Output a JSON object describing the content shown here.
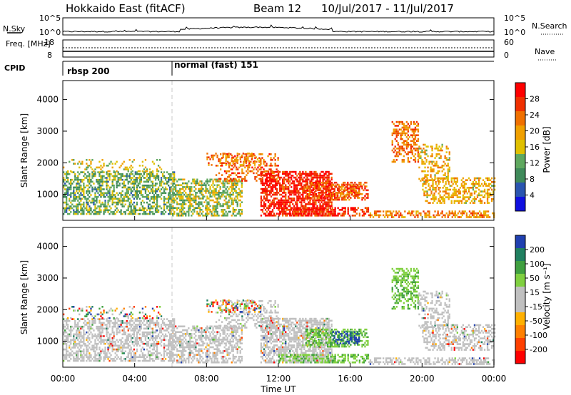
{
  "header": {
    "station": "Hokkaido East (fitACF)",
    "beam": "Beam 12",
    "date_range": "10/Jul/2017 - 11/Jul/2017"
  },
  "colors": {
    "scale_power": [
      "#1010e0",
      "#2a55b0",
      "#3f8a5a",
      "#5fa85f",
      "#e0c000",
      "#f0a000",
      "#f07000",
      "#f03000",
      "#ff0000"
    ],
    "scale_velocity": [
      "#ff0000",
      "#ff4000",
      "#ff8000",
      "#ffb000",
      "#c0c0c0",
      "#c0c0c0",
      "#80d040",
      "#40a040",
      "#208060",
      "#2040b0"
    ]
  },
  "chart_data": [
    {
      "type": "line",
      "title": "",
      "left_label": "N.Sky",
      "right_label": "N.Search",
      "left_ticks": [
        "10^5",
        "10^0"
      ],
      "right_ticks": [
        "10^5",
        "10^0"
      ]
    },
    {
      "type": "line",
      "left_label": "Freq. [MHz]",
      "right_label": "Nave",
      "left_ticks": [
        "18",
        "8"
      ],
      "right_ticks": [
        "60",
        "0"
      ]
    },
    {
      "type": "table",
      "label": "CPID",
      "segments": [
        {
          "start": "00:00",
          "name": "rbsp 200"
        },
        {
          "start": "06:00",
          "name": "normal (fast) 151"
        }
      ]
    },
    {
      "type": "heatmap",
      "ylabel": "Slant Range [km]",
      "yticks": [
        1000,
        2000,
        3000,
        4000
      ],
      "ylim": [
        180,
        4600
      ],
      "xlim": [
        0,
        24
      ],
      "colorbar_label": "Power [dB]",
      "colorbar_ticks": [
        "28",
        "24",
        "20",
        "16",
        "12",
        "8",
        "4"
      ]
    },
    {
      "type": "heatmap",
      "ylabel": "Slant Range [km]",
      "yticks": [
        1000,
        2000,
        3000,
        4000
      ],
      "ylim": [
        180,
        4600
      ],
      "xlim": [
        0,
        24
      ],
      "colorbar_label": "Velocity [m s⁻¹]",
      "colorbar_ticks": [
        "200",
        "100",
        "50",
        "15",
        "-15",
        "-50",
        "-100",
        "-200"
      ],
      "xticks": [
        "00:00",
        "04:00",
        "08:00",
        "12:00",
        "16:00",
        "20:00",
        "00:00"
      ],
      "xlabel": "Time UT"
    }
  ]
}
